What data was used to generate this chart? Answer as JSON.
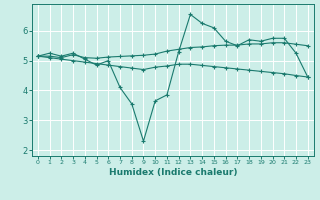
{
  "title": "",
  "xlabel": "Humidex (Indice chaleur)",
  "bg_color": "#cceee8",
  "line_color": "#1a7a6e",
  "grid_color": "#ffffff",
  "xlim": [
    -0.5,
    23.5
  ],
  "ylim": [
    1.8,
    6.9
  ],
  "yticks": [
    2,
    3,
    4,
    5,
    6
  ],
  "xticks": [
    0,
    1,
    2,
    3,
    4,
    5,
    6,
    7,
    8,
    9,
    10,
    11,
    12,
    13,
    14,
    15,
    16,
    17,
    18,
    19,
    20,
    21,
    22,
    23
  ],
  "line1_x": [
    0,
    1,
    2,
    3,
    4,
    5,
    6,
    7,
    8,
    9,
    10,
    11,
    12,
    13,
    14,
    15,
    16,
    17,
    18,
    19,
    20,
    21,
    22,
    23
  ],
  "line1_y": [
    5.15,
    5.25,
    5.15,
    5.25,
    5.05,
    4.85,
    5.0,
    4.1,
    3.55,
    2.3,
    3.65,
    3.85,
    5.3,
    6.55,
    6.25,
    6.1,
    5.65,
    5.5,
    5.7,
    5.65,
    5.75,
    5.75,
    5.25,
    4.45
  ],
  "line2_x": [
    0,
    1,
    2,
    3,
    4,
    5,
    6,
    7,
    8,
    9,
    10,
    11,
    12,
    13,
    14,
    15,
    16,
    17,
    18,
    19,
    20,
    21,
    22,
    23
  ],
  "line2_y": [
    5.15,
    5.15,
    5.1,
    5.2,
    5.1,
    5.08,
    5.12,
    5.14,
    5.16,
    5.18,
    5.22,
    5.32,
    5.38,
    5.44,
    5.46,
    5.5,
    5.52,
    5.52,
    5.56,
    5.56,
    5.6,
    5.6,
    5.55,
    5.5
  ],
  "line3_x": [
    0,
    1,
    2,
    3,
    4,
    5,
    6,
    7,
    8,
    9,
    10,
    11,
    12,
    13,
    14,
    15,
    16,
    17,
    18,
    19,
    20,
    21,
    22,
    23
  ],
  "line3_y": [
    5.15,
    5.1,
    5.05,
    5.0,
    4.95,
    4.9,
    4.85,
    4.8,
    4.75,
    4.7,
    4.78,
    4.82,
    4.88,
    4.88,
    4.84,
    4.8,
    4.76,
    4.72,
    4.68,
    4.64,
    4.6,
    4.56,
    4.5,
    4.45
  ]
}
